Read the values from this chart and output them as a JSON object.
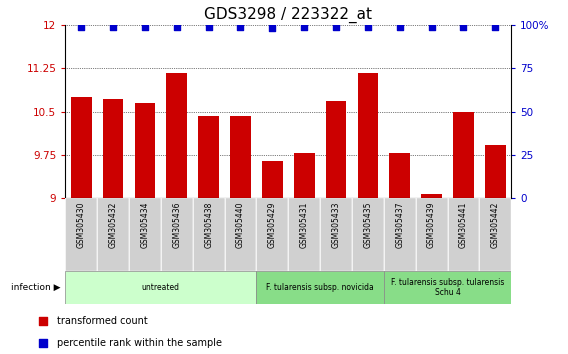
{
  "title": "GDS3298 / 223322_at",
  "samples": [
    "GSM305430",
    "GSM305432",
    "GSM305434",
    "GSM305436",
    "GSM305438",
    "GSM305440",
    "GSM305429",
    "GSM305431",
    "GSM305433",
    "GSM305435",
    "GSM305437",
    "GSM305439",
    "GSM305441",
    "GSM305442"
  ],
  "bar_values": [
    10.75,
    10.72,
    10.65,
    11.17,
    10.42,
    10.42,
    9.65,
    9.78,
    10.68,
    11.17,
    9.78,
    9.08,
    10.5,
    9.92
  ],
  "dot_values": [
    99,
    99,
    99,
    99,
    99,
    99,
    98,
    99,
    99,
    99,
    99,
    99,
    99,
    99
  ],
  "ylim_left": [
    9,
    12
  ],
  "ylim_right": [
    0,
    100
  ],
  "yticks_left": [
    9,
    9.75,
    10.5,
    11.25,
    12
  ],
  "ytick_labels_left": [
    "9",
    "9.75",
    "10.5",
    "11.25",
    "12"
  ],
  "yticks_right": [
    0,
    25,
    50,
    75,
    100
  ],
  "ytick_labels_right": [
    "0",
    "25",
    "50",
    "75",
    "100%"
  ],
  "bar_color": "#cc0000",
  "dot_color": "#0000cc",
  "group_spans": [
    {
      "start": 0,
      "end": 6,
      "label": "untreated",
      "color": "#ccffcc"
    },
    {
      "start": 6,
      "end": 10,
      "label": "F. tularensis subsp. novicida",
      "color": "#88dd88"
    },
    {
      "start": 10,
      "end": 14,
      "label": "F. tularensis subsp. tularensis\nSchu 4",
      "color": "#88dd88"
    }
  ],
  "infection_label": "infection ▶",
  "legend_items": [
    {
      "label": "transformed count",
      "color": "#cc0000"
    },
    {
      "label": "percentile rank within the sample",
      "color": "#0000cc"
    }
  ],
  "tick_label_color_left": "#cc0000",
  "tick_label_color_right": "#0000cc",
  "title_fontsize": 11,
  "bar_width": 0.65,
  "xtick_bg": "#d0d0d0"
}
